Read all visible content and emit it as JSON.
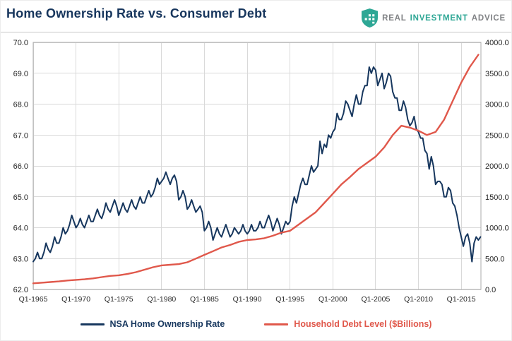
{
  "header": {
    "title": "Home Ownership Rate vs. Consumer Debt",
    "brand": {
      "words": [
        "REAL",
        "INVESTMENT",
        "ADVICE"
      ],
      "accent_color": "#2ea795",
      "text_color": "#808285"
    }
  },
  "legend": {
    "items": [
      {
        "label": "NSA Home Ownership Rate",
        "color": "#17375e"
      },
      {
        "label": "Household Debt Level ($Billions)",
        "color": "#e0584b"
      }
    ]
  },
  "chart_data": {
    "type": "line",
    "title": "Home Ownership Rate vs. Consumer Debt",
    "grid": true,
    "legend_position": "bottom",
    "x_range": [
      1965,
      2017.3
    ],
    "x_ticks": [
      1965,
      1970,
      1975,
      1980,
      1985,
      1990,
      1995,
      2000,
      2005,
      2010,
      2015
    ],
    "x_tick_labels": [
      "Q1-1965",
      "Q1-1970",
      "Q1-1975",
      "Q1-1980",
      "Q1-1985",
      "Q1-1990",
      "Q1-1995",
      "Q1-2000",
      "Q1-2005",
      "Q1-2010",
      "Q1-2015"
    ],
    "y_left": {
      "min": 62,
      "max": 70,
      "ticks": [
        70,
        69,
        68,
        67,
        66,
        65,
        64,
        63,
        62
      ],
      "tick_labels": [
        "70.0",
        "69.0",
        "68.0",
        "67.0",
        "66.0",
        "65.0",
        "64.0",
        "63.0",
        "62.0"
      ],
      "series": "NSA Home Ownership Rate"
    },
    "y_right": {
      "min": 0,
      "max": 4000,
      "ticks": [
        4000,
        3500,
        3000,
        2500,
        2000,
        1500,
        1000,
        500,
        0
      ],
      "tick_labels": [
        "4000.0",
        "3500.0",
        "3000.0",
        "2500.0",
        "2000.0",
        "1500.0",
        "1000.0",
        "500.0",
        "0.0"
      ],
      "series": "Household Debt Level ($Billions)"
    },
    "series": [
      {
        "name": "NSA Home Ownership Rate",
        "axis": "left",
        "color": "#17375e",
        "stroke_width": 2,
        "x_start": 1965,
        "x_step": 0.25,
        "values": [
          62.9,
          63.0,
          63.2,
          63.0,
          63.0,
          63.2,
          63.5,
          63.3,
          63.2,
          63.4,
          63.7,
          63.5,
          63.5,
          63.7,
          64.0,
          63.8,
          63.9,
          64.1,
          64.4,
          64.2,
          64.0,
          64.1,
          64.3,
          64.1,
          64.0,
          64.2,
          64.4,
          64.2,
          64.2,
          64.4,
          64.6,
          64.4,
          64.3,
          64.5,
          64.8,
          64.6,
          64.5,
          64.7,
          64.9,
          64.7,
          64.4,
          64.6,
          64.8,
          64.6,
          64.5,
          64.7,
          64.9,
          64.7,
          64.6,
          64.8,
          65.0,
          64.8,
          64.8,
          65.0,
          65.2,
          65.0,
          65.1,
          65.3,
          65.6,
          65.4,
          65.5,
          65.6,
          65.8,
          65.6,
          65.4,
          65.6,
          65.7,
          65.5,
          64.9,
          65.0,
          65.2,
          65.0,
          64.6,
          64.7,
          64.9,
          64.7,
          64.5,
          64.6,
          64.7,
          64.5,
          63.9,
          64.0,
          64.2,
          64.0,
          63.6,
          63.8,
          64.0,
          63.8,
          63.7,
          63.9,
          64.1,
          63.9,
          63.7,
          63.8,
          64.0,
          63.9,
          63.8,
          63.9,
          64.1,
          63.9,
          63.8,
          63.9,
          64.1,
          63.9,
          63.9,
          64.0,
          64.2,
          64.0,
          64.0,
          64.2,
          64.4,
          64.2,
          63.9,
          64.1,
          64.3,
          64.1,
          63.8,
          64.0,
          64.2,
          64.1,
          64.2,
          64.7,
          65.0,
          64.8,
          65.1,
          65.4,
          65.6,
          65.4,
          65.4,
          65.7,
          66.0,
          65.8,
          65.9,
          66.0,
          66.8,
          66.4,
          66.7,
          66.6,
          67.0,
          66.9,
          67.1,
          67.2,
          67.7,
          67.5,
          67.5,
          67.7,
          68.1,
          68.0,
          67.8,
          67.6,
          68.0,
          68.3,
          68.0,
          68.0,
          68.4,
          68.6,
          68.6,
          69.2,
          69.0,
          69.2,
          69.1,
          68.6,
          68.8,
          69.0,
          68.5,
          68.7,
          69.0,
          68.9,
          68.4,
          68.2,
          68.2,
          67.8,
          67.8,
          68.1,
          67.9,
          67.5,
          67.3,
          67.4,
          67.6,
          67.2,
          67.1,
          66.9,
          66.9,
          66.5,
          66.4,
          65.9,
          66.3,
          66.0,
          65.4,
          65.5,
          65.5,
          65.4,
          65.0,
          65.0,
          65.3,
          65.2,
          64.8,
          64.7,
          64.4,
          64.0,
          63.7,
          63.4,
          63.7,
          63.8,
          63.5,
          62.9,
          63.5,
          63.7,
          63.6,
          63.7
        ]
      },
      {
        "name": "Household Debt Level ($Billions)",
        "axis": "right",
        "color": "#e0584b",
        "stroke_width": 2.4,
        "x_start": 1965,
        "x_step": 1,
        "values": [
          100,
          110,
          120,
          130,
          145,
          155,
          165,
          180,
          200,
          220,
          230,
          250,
          280,
          320,
          360,
          390,
          400,
          410,
          440,
          500,
          560,
          620,
          680,
          720,
          770,
          800,
          810,
          830,
          870,
          920,
          950,
          1050,
          1150,
          1250,
          1400,
          1550,
          1700,
          1820,
          1950,
          2050,
          2150,
          2300,
          2500,
          2650,
          2620,
          2570,
          2500,
          2550,
          2750,
          3050,
          3350,
          3600,
          3800
        ]
      }
    ]
  }
}
